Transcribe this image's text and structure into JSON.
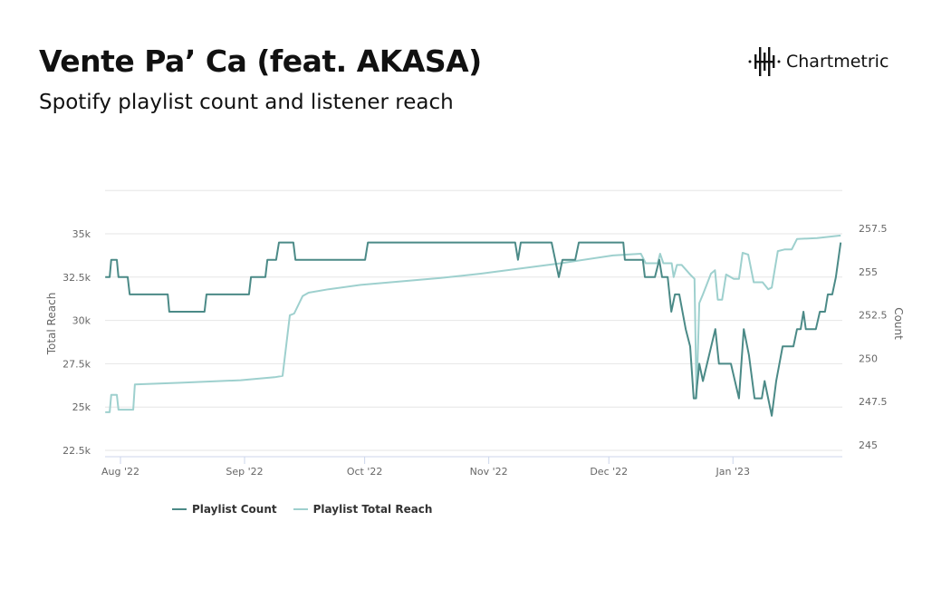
{
  "header": {
    "title": "Vente Pa’ Ca (feat. AKASA)",
    "subtitle": "Spotify playlist count and listener reach",
    "logo_text": "Chartmetric"
  },
  "colors": {
    "playlist_count": "#4b8a87",
    "playlist_total_reach": "#9ed0ce"
  },
  "chart_data": {
    "type": "line",
    "title": "Vente Pa’ Ca (feat. AKASA)",
    "subtitle": "Spotify playlist count and listener reach",
    "x_unit": "days since 2022-08-01",
    "x_ticks": [
      {
        "day": 0,
        "label": "Aug '22"
      },
      {
        "day": 31,
        "label": "Sep '22"
      },
      {
        "day": 61,
        "label": "Oct '22"
      },
      {
        "day": 92,
        "label": "Nov '22"
      },
      {
        "day": 122,
        "label": "Dec '22"
      },
      {
        "day": 153,
        "label": "Jan '23"
      }
    ],
    "xlim": [
      -3.8,
      180
    ],
    "y_left": {
      "label": "Total Reach",
      "lim": [
        22500,
        37500
      ],
      "ticks": [
        {
          "v": 22500,
          "label": "22.5k"
        },
        {
          "v": 25000,
          "label": "25k"
        },
        {
          "v": 27500,
          "label": "27.5k"
        },
        {
          "v": 30000,
          "label": "30k"
        },
        {
          "v": 32500,
          "label": "32.5k"
        },
        {
          "v": 35000,
          "label": "35k"
        }
      ]
    },
    "y_right": {
      "label": "Count",
      "lim": [
        245,
        260
      ],
      "ticks": [
        {
          "v": 245,
          "label": "245"
        },
        {
          "v": 247.5,
          "label": "247.5"
        },
        {
          "v": 250,
          "label": "250"
        },
        {
          "v": 252.5,
          "label": "252.5"
        },
        {
          "v": 255,
          "label": "255"
        },
        {
          "v": 257.5,
          "label": "257.5"
        }
      ]
    },
    "grid": true,
    "legend_position": "bottom-left",
    "series": [
      {
        "name": "Playlist Count",
        "axis": "right",
        "points": [
          [
            -3.8,
            255
          ],
          [
            -2.7,
            255
          ],
          [
            -2.3,
            256
          ],
          [
            -0.9,
            256
          ],
          [
            -0.5,
            255
          ],
          [
            1.8,
            255
          ],
          [
            2.3,
            254
          ],
          [
            11.8,
            254
          ],
          [
            12.2,
            253
          ],
          [
            21,
            253
          ],
          [
            21.5,
            254
          ],
          [
            32.1,
            254
          ],
          [
            32.6,
            255
          ],
          [
            36.2,
            255
          ],
          [
            36.7,
            256
          ],
          [
            38.9,
            256
          ],
          [
            39.6,
            257
          ],
          [
            43.2,
            257
          ],
          [
            43.7,
            256
          ],
          [
            61.1,
            256
          ],
          [
            61.8,
            257
          ],
          [
            98.6,
            257
          ],
          [
            99.3,
            256
          ],
          [
            100,
            257
          ],
          [
            107.7,
            257
          ],
          [
            109.5,
            255
          ],
          [
            110.4,
            256
          ],
          [
            113.6,
            256
          ],
          [
            114.5,
            257
          ],
          [
            125.6,
            257
          ],
          [
            126,
            256
          ],
          [
            130.5,
            256
          ],
          [
            131,
            255
          ],
          [
            133.5,
            255
          ],
          [
            134.6,
            256
          ],
          [
            135.3,
            255
          ],
          [
            136.7,
            255
          ],
          [
            137.6,
            253
          ],
          [
            138.5,
            254
          ],
          [
            139.6,
            254
          ],
          [
            141.2,
            252
          ],
          [
            142.3,
            251
          ],
          [
            143.2,
            248
          ],
          [
            143.7,
            248
          ],
          [
            144.6,
            250
          ],
          [
            145.5,
            249
          ],
          [
            148.6,
            252
          ],
          [
            149.5,
            250
          ],
          [
            152.5,
            250
          ],
          [
            154.5,
            248
          ],
          [
            155.7,
            252
          ],
          [
            157,
            250.5
          ],
          [
            158.4,
            248
          ],
          [
            160.2,
            248
          ],
          [
            160.9,
            249
          ],
          [
            162.7,
            247
          ],
          [
            163.8,
            249
          ],
          [
            165.4,
            251
          ],
          [
            168.1,
            251
          ],
          [
            169,
            252
          ],
          [
            169.9,
            252
          ],
          [
            170.6,
            253
          ],
          [
            171.2,
            252
          ],
          [
            173.7,
            252
          ],
          [
            174.7,
            253
          ],
          [
            176,
            253
          ],
          [
            176.7,
            254
          ],
          [
            177.8,
            254
          ],
          [
            178.7,
            255
          ],
          [
            179.9,
            257
          ]
        ]
      },
      {
        "name": "Playlist Total Reach",
        "axis": "left",
        "points": [
          [
            -3.8,
            24700
          ],
          [
            -2.7,
            24700
          ],
          [
            -2.3,
            25700
          ],
          [
            -0.9,
            25700
          ],
          [
            -0.5,
            24850
          ],
          [
            3.2,
            24850
          ],
          [
            3.6,
            26300
          ],
          [
            15,
            26400
          ],
          [
            30,
            26550
          ],
          [
            38.5,
            26720
          ],
          [
            40.5,
            26800
          ],
          [
            42.3,
            30300
          ],
          [
            43.4,
            30400
          ],
          [
            45.5,
            31400
          ],
          [
            47,
            31600
          ],
          [
            52,
            31800
          ],
          [
            60,
            32050
          ],
          [
            80,
            32450
          ],
          [
            90,
            32700
          ],
          [
            110,
            33300
          ],
          [
            123,
            33750
          ],
          [
            130,
            33850
          ],
          [
            131.2,
            33300
          ],
          [
            134.2,
            33300
          ],
          [
            134.8,
            33850
          ],
          [
            135.6,
            33300
          ],
          [
            137.7,
            33300
          ],
          [
            138.2,
            32500
          ],
          [
            139,
            33200
          ],
          [
            140.2,
            33200
          ],
          [
            142.5,
            32600
          ],
          [
            143.4,
            32400
          ],
          [
            143.9,
            25500
          ],
          [
            144.6,
            31000
          ],
          [
            145.5,
            31500
          ],
          [
            147.5,
            32700
          ],
          [
            148.5,
            32900
          ],
          [
            149.2,
            31200
          ],
          [
            150.3,
            31200
          ],
          [
            151.3,
            32650
          ],
          [
            153.2,
            32400
          ],
          [
            154.5,
            32400
          ],
          [
            155.4,
            33900
          ],
          [
            156.8,
            33800
          ],
          [
            158.2,
            32200
          ],
          [
            160.4,
            32200
          ],
          [
            161.8,
            31800
          ],
          [
            162.7,
            31900
          ],
          [
            164.2,
            34000
          ],
          [
            166,
            34100
          ],
          [
            167.7,
            34100
          ],
          [
            169,
            34700
          ],
          [
            174,
            34750
          ],
          [
            179.9,
            34900
          ]
        ]
      }
    ]
  }
}
